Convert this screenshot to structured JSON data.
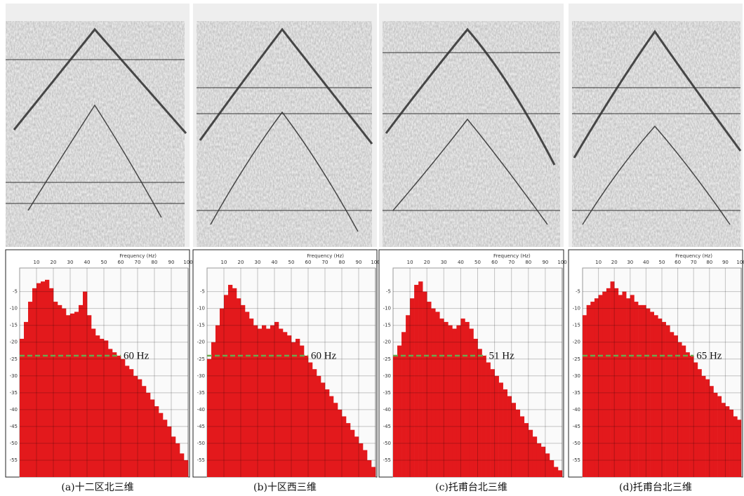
{
  "chart_data": [
    {
      "type": "bar",
      "title": "Frequency (Hz)",
      "caption": "(a)十二区北三维",
      "annotation": "60 Hz",
      "threshold": -24,
      "color": "#e3191c",
      "grid": true,
      "xlim": [
        0,
        100
      ],
      "ylim": [
        -60,
        2
      ],
      "xticks": [
        10,
        20,
        30,
        40,
        50,
        60,
        70,
        80,
        90,
        100
      ],
      "yticks": [
        -5,
        -10,
        -15,
        -20,
        -25,
        -30,
        -35,
        -40,
        -45,
        -50,
        -55
      ],
      "x": [
        2.5,
        5,
        7.5,
        10,
        12.5,
        15,
        17.5,
        20,
        22.5,
        25,
        27.5,
        30,
        32.5,
        35,
        37.5,
        40,
        42.5,
        45,
        47.5,
        50,
        52.5,
        55,
        57.5,
        60,
        62.5,
        65,
        67.5,
        70,
        72.5,
        75,
        77.5,
        80,
        82.5,
        85,
        87.5,
        90,
        92.5,
        95,
        97.5,
        100
      ],
      "values": [
        -19,
        -14,
        -8,
        -4,
        -2.5,
        -2,
        -1.5,
        -4,
        -8,
        -9,
        -10,
        -12,
        -11.5,
        -11,
        -9,
        -5,
        -12,
        -16,
        -18,
        -19,
        -19.5,
        -22,
        -23,
        -24,
        -25,
        -27,
        -28,
        -30,
        -31,
        -33,
        -35,
        -37,
        -39,
        -41,
        -43,
        -45,
        -48,
        -50,
        -53,
        -55
      ]
    },
    {
      "type": "bar",
      "title": "Frequency (Hz)",
      "caption": "(b)十区西三维",
      "annotation": "60 Hz",
      "threshold": -24,
      "color": "#e3191c",
      "grid": true,
      "xlim": [
        0,
        100
      ],
      "ylim": [
        -60,
        2
      ],
      "xticks": [
        10,
        20,
        30,
        40,
        50,
        60,
        70,
        80,
        90,
        100
      ],
      "yticks": [
        -5,
        -10,
        -15,
        -20,
        -25,
        -30,
        -35,
        -40,
        -45,
        -50,
        -55
      ],
      "x": [
        2.5,
        5,
        7.5,
        10,
        12.5,
        15,
        17.5,
        20,
        22.5,
        25,
        27.5,
        30,
        32.5,
        35,
        37.5,
        40,
        42.5,
        45,
        47.5,
        50,
        52.5,
        55,
        57.5,
        60,
        62.5,
        65,
        67.5,
        70,
        72.5,
        75,
        77.5,
        80,
        82.5,
        85,
        87.5,
        90,
        92.5,
        95,
        97.5,
        100
      ],
      "values": [
        -25,
        -20,
        -15,
        -10,
        -6,
        -3,
        -4,
        -7,
        -9,
        -11,
        -13,
        -15,
        -16,
        -15,
        -16,
        -15,
        -14,
        -16,
        -17,
        -18,
        -20,
        -19,
        -21,
        -24,
        -26,
        -28,
        -30,
        -32,
        -34,
        -36,
        -38,
        -40,
        -42,
        -44,
        -46,
        -48,
        -50,
        -52,
        -55,
        -57
      ]
    },
    {
      "type": "bar",
      "title": "Frequency (Hz)",
      "caption": "(c)托甫台北三维",
      "annotation": "51 Hz",
      "threshold": -24,
      "color": "#e3191c",
      "grid": true,
      "xlim": [
        0,
        100
      ],
      "ylim": [
        -60,
        2
      ],
      "xticks": [
        10,
        20,
        30,
        40,
        50,
        60,
        70,
        80,
        90,
        100
      ],
      "yticks": [
        -5,
        -10,
        -15,
        -20,
        -25,
        -30,
        -35,
        -40,
        -45,
        -50,
        -55
      ],
      "x": [
        2.5,
        5,
        7.5,
        10,
        12.5,
        15,
        17.5,
        20,
        22.5,
        25,
        27.5,
        30,
        32.5,
        35,
        37.5,
        40,
        42.5,
        45,
        47.5,
        50,
        52.5,
        55,
        57.5,
        60,
        62.5,
        65,
        67.5,
        70,
        72.5,
        75,
        77.5,
        80,
        82.5,
        85,
        87.5,
        90,
        92.5,
        95,
        97.5,
        100
      ],
      "values": [
        -24,
        -21,
        -17,
        -12,
        -7,
        -3,
        -2,
        -5,
        -8,
        -10,
        -11,
        -13,
        -14,
        -15,
        -16,
        -15,
        -13,
        -14,
        -16,
        -19,
        -22,
        -24,
        -26,
        -28,
        -30,
        -32,
        -34,
        -36,
        -38,
        -40,
        -42,
        -44,
        -46,
        -48,
        -50,
        -51,
        -53,
        -55,
        -57,
        -58
      ]
    },
    {
      "type": "bar",
      "title": "Frequency (Hz)",
      "caption": "(d)托甫台北三维",
      "annotation": "65 Hz",
      "threshold": -24,
      "color": "#e3191c",
      "grid": true,
      "xlim": [
        0,
        100
      ],
      "ylim": [
        -60,
        2
      ],
      "xticks": [
        10,
        20,
        30,
        40,
        50,
        60,
        70,
        80,
        90,
        100
      ],
      "yticks": [
        -5,
        -10,
        -15,
        -20,
        -25,
        -30,
        -35,
        -40,
        -45,
        -50,
        -55
      ],
      "x": [
        2.5,
        5,
        7.5,
        10,
        12.5,
        15,
        17.5,
        20,
        22.5,
        25,
        27.5,
        30,
        32.5,
        35,
        37.5,
        40,
        42.5,
        45,
        47.5,
        50,
        52.5,
        55,
        57.5,
        60,
        62.5,
        65,
        67.5,
        70,
        72.5,
        75,
        77.5,
        80,
        82.5,
        85,
        87.5,
        90,
        92.5,
        95,
        97.5,
        100
      ],
      "values": [
        -12,
        -9,
        -8,
        -7,
        -6,
        -5,
        -4,
        -2,
        -4,
        -6,
        -5,
        -7,
        -6,
        -8,
        -9,
        -9,
        -10,
        -11,
        -12,
        -13,
        -14,
        -15,
        -17,
        -18,
        -20,
        -21,
        -23,
        -24,
        -26,
        -28,
        -30,
        -31,
        -33,
        -35,
        -36,
        -38,
        -39,
        -40,
        -42,
        -43
      ]
    }
  ]
}
